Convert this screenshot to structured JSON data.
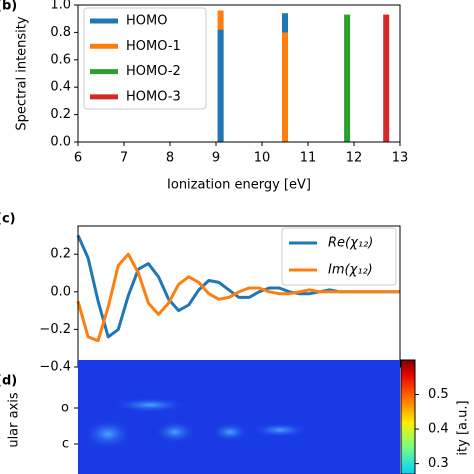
{
  "chart_data": [
    {
      "type": "bar",
      "panel": "(b)",
      "y_label": "Spectral intensity",
      "x_label": "Ionization energy [eV]",
      "x": [
        9.1,
        10.5,
        11.85,
        12.7
      ],
      "series": [
        {
          "name": "HOMO",
          "color": "#1f77b4",
          "values": [
            0.82,
            0.94,
            null,
            null
          ]
        },
        {
          "name": "HOMO-1",
          "color": "#ff7f0e",
          "values": [
            0.96,
            0.8,
            null,
            null
          ]
        },
        {
          "name": "HOMO-2",
          "color": "#2ca02c",
          "values": [
            null,
            null,
            0.93,
            null
          ]
        },
        {
          "name": "HOMO-3",
          "color": "#d62728",
          "values": [
            null,
            null,
            null,
            0.93
          ]
        }
      ],
      "xlim": [
        6,
        13
      ],
      "xticks": [
        6,
        7,
        8,
        9,
        10,
        11,
        12,
        13
      ],
      "ylim": [
        0,
        1
      ],
      "yticks": [
        {
          "value": 0,
          "label": "0.0"
        },
        {
          "value": 0.2,
          "label": "0.2"
        },
        {
          "value": 0.4,
          "label": "0.4"
        },
        {
          "value": 0.6,
          "label": "0.6"
        },
        {
          "value": 0.8,
          "label": "0.8"
        },
        {
          "value": 1,
          "label": "1.0"
        }
      ],
      "legend": "upper left"
    },
    {
      "type": "line",
      "panel": "(c)",
      "series": [
        {
          "name": "Re(χ₁₂)",
          "color": "#1f77b4",
          "values": [
            0.3,
            0.18,
            -0.05,
            -0.24,
            -0.2,
            -0.02,
            0.12,
            0.15,
            0.08,
            -0.04,
            -0.1,
            -0.07,
            0.01,
            0.06,
            0.05,
            0.01,
            -0.03,
            -0.03,
            0.0,
            0.02,
            0.02,
            0.0,
            -0.01,
            -0.01,
            0.0,
            0.01,
            0.0,
            0.0,
            0.0,
            0.0,
            0.0,
            0.0,
            0.0
          ]
        },
        {
          "name": "Im(χ₁₂)",
          "color": "#ff7f0e",
          "values": [
            -0.05,
            -0.24,
            -0.26,
            -0.08,
            0.14,
            0.2,
            0.1,
            -0.06,
            -0.12,
            -0.06,
            0.04,
            0.08,
            0.05,
            -0.01,
            -0.04,
            -0.03,
            0.0,
            0.02,
            0.02,
            0.0,
            -0.01,
            -0.01,
            0.0,
            0.01,
            0.0,
            0.0,
            0.0,
            0.0,
            0.0,
            0.0,
            0.0,
            0.0,
            0.0
          ]
        }
      ],
      "ylim": [
        -0.4,
        0.35
      ],
      "yticks": [
        {
          "value": -0.4,
          "label": "−0.4"
        },
        {
          "value": -0.2,
          "label": "−0.2"
        },
        {
          "value": 0,
          "label": "0.0"
        },
        {
          "value": 0.2,
          "label": "0.2"
        }
      ],
      "legend": "upper right"
    },
    {
      "type": "heatmap",
      "panel": "(d)",
      "y_label": "ular axis",
      "yticklabels": [
        "o",
        "c"
      ],
      "colorbar_label": "ity [a.u.]",
      "clim": [
        0.27,
        0.6
      ],
      "cticks": [
        0.5,
        0.4,
        0.3
      ]
    }
  ]
}
